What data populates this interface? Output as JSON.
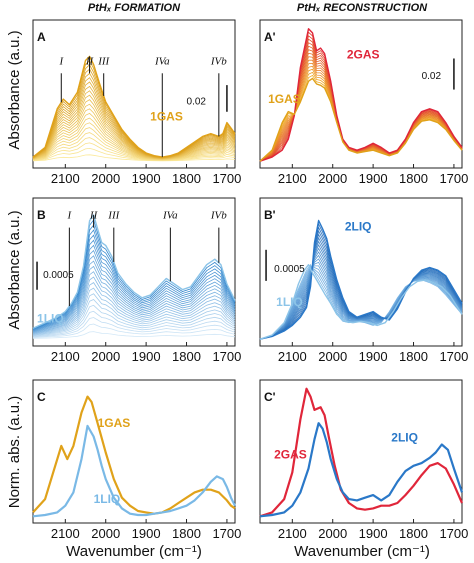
{
  "figure": {
    "col_titles": [
      "PtHₓ FORMATION",
      "PtHₓ RECONSTRUCTION"
    ],
    "ylabels": [
      "Absorbance (a.u.)",
      "Absorbance (a.u.)",
      "Norm. abs. (a.u.)"
    ],
    "xlabel": "Wavenumber (cm⁻¹)"
  },
  "chart_data": [
    {
      "id": "A",
      "panel_label": "A",
      "type": "line",
      "xlabel": "",
      "ylabel": "Absorbance (a.u.)",
      "xlim": [
        2180,
        1680
      ],
      "ylim": [
        0,
        1
      ],
      "x_reversed": true,
      "xticks": [
        "2100",
        "2000",
        "1900",
        "1800",
        "1700"
      ],
      "grid": false,
      "band_labels": [
        {
          "text": "I",
          "x": 2110
        },
        {
          "text": "II",
          "x": 2040
        },
        {
          "text": "III",
          "x": 2005
        },
        {
          "text": "IVa",
          "x": 1860
        },
        {
          "text": "IVb",
          "x": 1720
        }
      ],
      "scale_bar": "0.02",
      "series_labels": [
        {
          "text": "1GAS",
          "color": "#e0a21a"
        }
      ],
      "family": {
        "count": 22,
        "color_from": "#fbe99a",
        "color_to": "#d99a14"
      },
      "series": [
        {
          "name": "1GAS",
          "x": [
            2180,
            2150,
            2120,
            2105,
            2090,
            2070,
            2050,
            2040,
            2030,
            2015,
            2000,
            1980,
            1960,
            1940,
            1920,
            1900,
            1880,
            1860,
            1840,
            1820,
            1800,
            1780,
            1760,
            1740,
            1720,
            1710,
            1700,
            1690,
            1680
          ],
          "y": [
            0.05,
            0.12,
            0.4,
            0.47,
            0.43,
            0.52,
            0.75,
            0.78,
            0.72,
            0.58,
            0.45,
            0.35,
            0.25,
            0.18,
            0.12,
            0.08,
            0.06,
            0.05,
            0.06,
            0.08,
            0.12,
            0.16,
            0.2,
            0.22,
            0.2,
            0.22,
            0.3,
            0.26,
            0.22
          ]
        }
      ]
    },
    {
      "id": "A'",
      "panel_label": "A'",
      "type": "line",
      "xlabel": "",
      "ylabel": "",
      "xlim": [
        2180,
        1680
      ],
      "ylim": [
        0,
        1
      ],
      "x_reversed": true,
      "xticks": [
        "2100",
        "2000",
        "1900",
        "1800",
        "1700"
      ],
      "grid": false,
      "scale_bar": "0.02",
      "series_labels": [
        {
          "text": "2GAS",
          "color": "#e0263a"
        },
        {
          "text": "1GAS",
          "color": "#e0a21a"
        }
      ],
      "family": {
        "count": 16,
        "color_from": "#f0b52a",
        "color_to": "#e03a30"
      },
      "series": [
        {
          "name": "2GAS",
          "x": [
            2180,
            2150,
            2125,
            2110,
            2095,
            2080,
            2060,
            2050,
            2040,
            2030,
            2020,
            2005,
            1990,
            1975,
            1960,
            1940,
            1920,
            1900,
            1880,
            1860,
            1840,
            1820,
            1800,
            1780,
            1760,
            1740,
            1720,
            1700,
            1680
          ],
          "y": [
            0.02,
            0.05,
            0.1,
            0.18,
            0.35,
            0.7,
            0.98,
            0.95,
            0.82,
            0.84,
            0.8,
            0.6,
            0.35,
            0.18,
            0.12,
            0.1,
            0.12,
            0.15,
            0.12,
            0.08,
            0.1,
            0.18,
            0.3,
            0.38,
            0.4,
            0.38,
            0.3,
            0.2,
            0.12
          ]
        },
        {
          "name": "1GAS",
          "x": [
            2180,
            2150,
            2125,
            2110,
            2095,
            2080,
            2060,
            2050,
            2040,
            2030,
            2020,
            2005,
            1990,
            1975,
            1960,
            1940,
            1920,
            1900,
            1880,
            1860,
            1840,
            1820,
            1800,
            1780,
            1760,
            1740,
            1720,
            1700,
            1680
          ],
          "y": [
            0.02,
            0.1,
            0.3,
            0.38,
            0.36,
            0.45,
            0.6,
            0.62,
            0.58,
            0.57,
            0.55,
            0.45,
            0.3,
            0.16,
            0.1,
            0.08,
            0.09,
            0.1,
            0.08,
            0.06,
            0.08,
            0.15,
            0.25,
            0.31,
            0.32,
            0.3,
            0.25,
            0.17,
            0.1
          ]
        }
      ]
    },
    {
      "id": "B",
      "panel_label": "B",
      "type": "line",
      "xlabel": "",
      "ylabel": "Absorbance (a.u.)",
      "xlim": [
        2180,
        1680
      ],
      "ylim": [
        0,
        1
      ],
      "x_reversed": true,
      "xticks": [
        "2100",
        "2000",
        "1900",
        "1800",
        "1700"
      ],
      "grid": false,
      "band_labels": [
        {
          "text": "I",
          "x": 2090
        },
        {
          "text": "II",
          "x": 2030
        },
        {
          "text": "III",
          "x": 1980
        },
        {
          "text": "IVa",
          "x": 1840
        },
        {
          "text": "IVb",
          "x": 1720
        }
      ],
      "scale_bar": "0.0005",
      "series_labels": [
        {
          "text": "1LIQ",
          "color": "#8cc4e8"
        }
      ],
      "family": {
        "count": 22,
        "color_from": "#d3e8f7",
        "color_to": "#2c82cc"
      },
      "series": [
        {
          "name": "1LIQ",
          "x": [
            2180,
            2150,
            2120,
            2100,
            2085,
            2070,
            2055,
            2040,
            2030,
            2020,
            2010,
            2000,
            1985,
            1970,
            1950,
            1930,
            1910,
            1890,
            1870,
            1850,
            1830,
            1810,
            1790,
            1770,
            1750,
            1730,
            1715,
            1700,
            1680
          ],
          "y": [
            0.1,
            0.14,
            0.18,
            0.22,
            0.28,
            0.36,
            0.55,
            0.88,
            0.92,
            0.82,
            0.72,
            0.7,
            0.62,
            0.5,
            0.42,
            0.36,
            0.32,
            0.34,
            0.4,
            0.46,
            0.42,
            0.38,
            0.4,
            0.48,
            0.56,
            0.6,
            0.56,
            0.42,
            0.3
          ]
        }
      ]
    },
    {
      "id": "B'",
      "panel_label": "B'",
      "type": "line",
      "xlabel": "",
      "ylabel": "",
      "xlim": [
        2180,
        1680
      ],
      "ylim": [
        0,
        1
      ],
      "x_reversed": true,
      "xticks": [
        "2100",
        "2000",
        "1900",
        "1800",
        "1700"
      ],
      "grid": false,
      "scale_bar": "0.0005",
      "series_labels": [
        {
          "text": "2LIQ",
          "color": "#2a78c8"
        },
        {
          "text": "1LIQ",
          "color": "#8cc4e8"
        }
      ],
      "family": {
        "count": 18,
        "color_from": "#7fb8e6",
        "color_to": "#1f68b8"
      },
      "series": [
        {
          "name": "2LIQ",
          "x": [
            2180,
            2150,
            2120,
            2100,
            2080,
            2065,
            2055,
            2045,
            2035,
            2025,
            2015,
            2005,
            1990,
            1975,
            1960,
            1940,
            1920,
            1900,
            1880,
            1860,
            1840,
            1820,
            1800,
            1780,
            1760,
            1740,
            1720,
            1700,
            1680
          ],
          "y": [
            0.02,
            0.04,
            0.08,
            0.12,
            0.18,
            0.25,
            0.4,
            0.72,
            0.88,
            0.82,
            0.75,
            0.62,
            0.45,
            0.32,
            0.22,
            0.18,
            0.2,
            0.22,
            0.18,
            0.16,
            0.24,
            0.36,
            0.46,
            0.52,
            0.54,
            0.52,
            0.48,
            0.38,
            0.28
          ]
        },
        {
          "name": "1LIQ",
          "x": [
            2180,
            2150,
            2120,
            2100,
            2085,
            2070,
            2060,
            2050,
            2040,
            2030,
            2020,
            2005,
            1990,
            1970,
            1950,
            1930,
            1910,
            1890,
            1870,
            1850,
            1830,
            1810,
            1790,
            1770,
            1750,
            1730,
            1710,
            1695,
            1680
          ],
          "y": [
            0.02,
            0.05,
            0.14,
            0.28,
            0.42,
            0.52,
            0.56,
            0.5,
            0.45,
            0.4,
            0.35,
            0.28,
            0.2,
            0.15,
            0.14,
            0.15,
            0.14,
            0.12,
            0.14,
            0.22,
            0.32,
            0.4,
            0.44,
            0.45,
            0.43,
            0.4,
            0.34,
            0.27,
            0.2
          ]
        }
      ]
    },
    {
      "id": "C",
      "panel_label": "C",
      "type": "line",
      "xlabel": "Wavenumber (cm⁻¹)",
      "ylabel": "Norm. abs. (a.u.)",
      "xlim": [
        2180,
        1680
      ],
      "ylim": [
        0,
        1
      ],
      "x_reversed": true,
      "xticks": [
        "2100",
        "2000",
        "1900",
        "1800",
        "1700"
      ],
      "grid": false,
      "series_labels": [
        {
          "text": "1GAS",
          "color": "#e0a21a"
        },
        {
          "text": "1LIQ",
          "color": "#7ab9e6"
        }
      ],
      "series": [
        {
          "name": "1GAS",
          "x": [
            2180,
            2150,
            2130,
            2110,
            2095,
            2080,
            2060,
            2045,
            2035,
            2020,
            2000,
            1980,
            1960,
            1940,
            1920,
            1900,
            1880,
            1860,
            1840,
            1820,
            1800,
            1780,
            1760,
            1740,
            1720,
            1700,
            1690,
            1680
          ],
          "y": [
            0.05,
            0.15,
            0.35,
            0.55,
            0.45,
            0.55,
            0.8,
            0.92,
            0.88,
            0.72,
            0.5,
            0.3,
            0.16,
            0.1,
            0.06,
            0.05,
            0.04,
            0.05,
            0.08,
            0.12,
            0.16,
            0.2,
            0.22,
            0.22,
            0.2,
            0.14,
            0.1,
            0.08
          ]
        },
        {
          "name": "1LIQ",
          "x": [
            2180,
            2150,
            2120,
            2100,
            2080,
            2060,
            2045,
            2030,
            2020,
            2010,
            2000,
            1980,
            1960,
            1940,
            1920,
            1900,
            1880,
            1860,
            1840,
            1820,
            1800,
            1780,
            1760,
            1740,
            1725,
            1710,
            1700,
            1690,
            1680
          ],
          "y": [
            0.02,
            0.03,
            0.05,
            0.1,
            0.2,
            0.45,
            0.7,
            0.62,
            0.52,
            0.4,
            0.3,
            0.16,
            0.08,
            0.04,
            0.03,
            0.03,
            0.04,
            0.05,
            0.06,
            0.08,
            0.1,
            0.14,
            0.2,
            0.28,
            0.32,
            0.3,
            0.24,
            0.16,
            0.1
          ]
        }
      ]
    },
    {
      "id": "C'",
      "panel_label": "C'",
      "type": "line",
      "xlabel": "Wavenumber (cm⁻¹)",
      "ylabel": "",
      "xlim": [
        2180,
        1680
      ],
      "ylim": [
        0,
        1
      ],
      "x_reversed": true,
      "xticks": [
        "2100",
        "2000",
        "1900",
        "1800",
        "1700"
      ],
      "grid": false,
      "series_labels": [
        {
          "text": "2GAS",
          "color": "#e0263a"
        },
        {
          "text": "2LIQ",
          "color": "#2a78c8"
        }
      ],
      "series": [
        {
          "name": "2GAS",
          "x": [
            2180,
            2150,
            2120,
            2100,
            2080,
            2065,
            2055,
            2045,
            2030,
            2020,
            2010,
            1995,
            1980,
            1960,
            1940,
            1920,
            1900,
            1880,
            1860,
            1840,
            1820,
            1800,
            1780,
            1760,
            1740,
            1720,
            1700,
            1680
          ],
          "y": [
            0.02,
            0.05,
            0.15,
            0.35,
            0.75,
            0.98,
            0.92,
            0.82,
            0.84,
            0.78,
            0.62,
            0.4,
            0.22,
            0.12,
            0.08,
            0.07,
            0.08,
            0.1,
            0.1,
            0.12,
            0.18,
            0.25,
            0.33,
            0.4,
            0.42,
            0.38,
            0.26,
            0.12
          ]
        },
        {
          "name": "2LIQ",
          "x": [
            2180,
            2150,
            2120,
            2100,
            2080,
            2060,
            2045,
            2035,
            2025,
            2015,
            2005,
            1990,
            1975,
            1960,
            1940,
            1920,
            1900,
            1880,
            1860,
            1840,
            1820,
            1800,
            1780,
            1760,
            1745,
            1730,
            1715,
            1700,
            1680
          ],
          "y": [
            0.02,
            0.03,
            0.05,
            0.1,
            0.2,
            0.38,
            0.6,
            0.72,
            0.68,
            0.58,
            0.45,
            0.3,
            0.2,
            0.15,
            0.14,
            0.16,
            0.18,
            0.14,
            0.18,
            0.28,
            0.36,
            0.4,
            0.42,
            0.46,
            0.5,
            0.56,
            0.52,
            0.38,
            0.2
          ]
        }
      ]
    }
  ]
}
